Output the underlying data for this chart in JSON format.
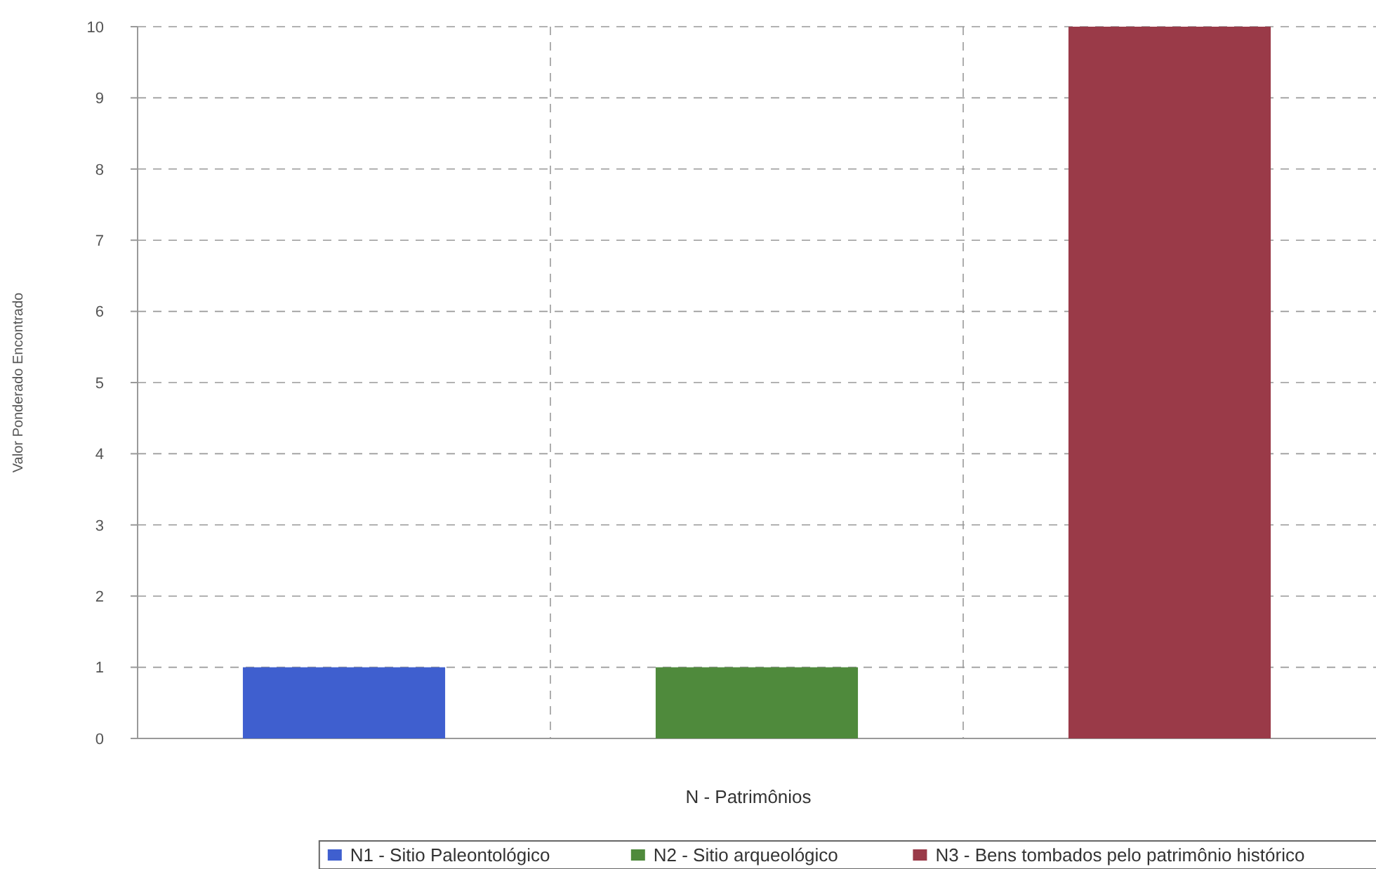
{
  "chart_data": {
    "type": "bar",
    "xlabel": "N - Patrimônios",
    "ylabel": "Valor Ponderado Encontrado",
    "categories": [
      null,
      null,
      null
    ],
    "series": [
      {
        "name": "N1 - Sitio Paleontológico",
        "color": "#3f5fcf",
        "values": [
          1,
          null,
          null
        ]
      },
      {
        "name": "N2 - Sitio arqueológico",
        "color": "#4f8a3c",
        "values": [
          null,
          1,
          null
        ]
      },
      {
        "name": "N3 - Bens tombados pelo patrimônio histórico",
        "color": "#9a3a48",
        "values": [
          null,
          null,
          10
        ]
      }
    ],
    "ylim": [
      0,
      10
    ],
    "yticks": [
      0,
      1,
      2,
      3,
      4,
      5,
      6,
      7,
      8,
      9,
      10
    ],
    "grid": true,
    "legend": "bottom"
  }
}
